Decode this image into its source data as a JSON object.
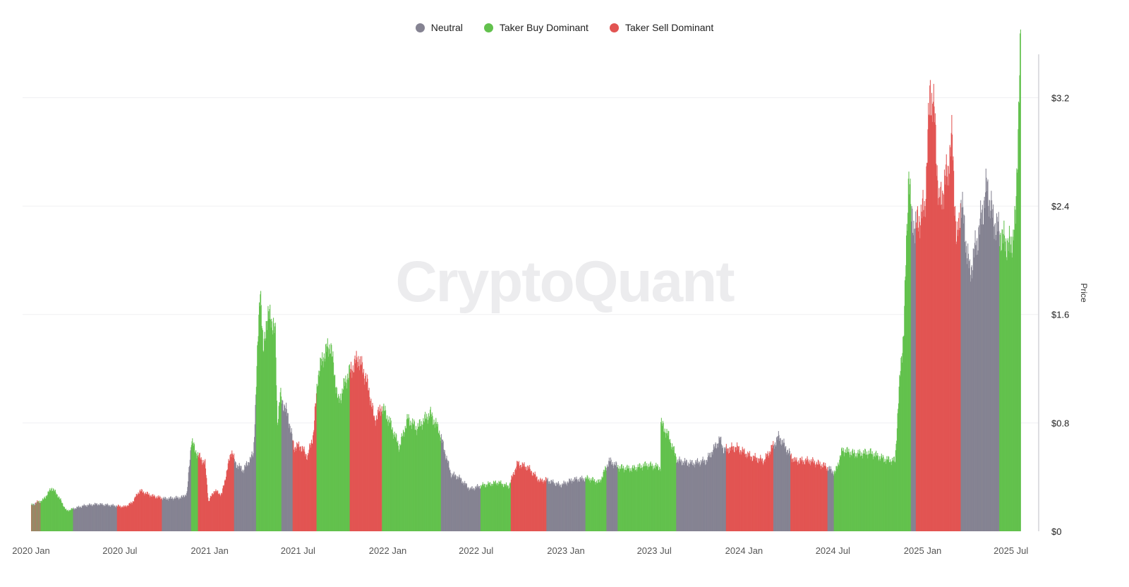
{
  "legend": [
    {
      "label": "Neutral",
      "color": "#858392"
    },
    {
      "label": "Taker Buy Dominant",
      "color": "#62c14d"
    },
    {
      "label": "Taker Sell Dominant",
      "color": "#e25452"
    }
  ],
  "watermark": "CryptoQuant",
  "chart_data": {
    "type": "bar",
    "title": "",
    "xlabel": "",
    "ylabel": "Price",
    "ylim": [
      0,
      3.52
    ],
    "xlim": [
      "2020-01-01",
      "2025-07-26"
    ],
    "grid": true,
    "legend_position": "top-center",
    "y_ticks": [
      {
        "value": 0,
        "label": "$0"
      },
      {
        "value": 0.8,
        "label": "$0.8"
      },
      {
        "value": 1.6,
        "label": "$1.6"
      },
      {
        "value": 2.4,
        "label": "$2.4"
      },
      {
        "value": 3.2,
        "label": "$3.2"
      }
    ],
    "x_ticks": [
      {
        "date": "2020-01-01",
        "label": "2020 Jan"
      },
      {
        "date": "2020-07-01",
        "label": "2020 Jul"
      },
      {
        "date": "2021-01-01",
        "label": "2021 Jan"
      },
      {
        "date": "2021-07-01",
        "label": "2021 Jul"
      },
      {
        "date": "2022-01-01",
        "label": "2022 Jan"
      },
      {
        "date": "2022-07-01",
        "label": "2022 Jul"
      },
      {
        "date": "2023-01-01",
        "label": "2023 Jan"
      },
      {
        "date": "2023-07-01",
        "label": "2023 Jul"
      },
      {
        "date": "2024-01-01",
        "label": "2024 Jan"
      },
      {
        "date": "2024-07-01",
        "label": "2024 Jul"
      },
      {
        "date": "2025-01-01",
        "label": "2025 Jan"
      },
      {
        "date": "2025-07-01",
        "label": "2025 Jul"
      }
    ],
    "series_labels": [
      "Neutral",
      "Taker Buy Dominant",
      "Taker Sell Dominant"
    ],
    "price_points": [
      [
        "2020-01-01",
        0.19
      ],
      [
        "2020-01-10",
        0.21
      ],
      [
        "2020-01-25",
        0.23
      ],
      [
        "2020-02-12",
        0.32
      ],
      [
        "2020-02-25",
        0.26
      ],
      [
        "2020-03-13",
        0.15
      ],
      [
        "2020-03-30",
        0.17
      ],
      [
        "2020-04-20",
        0.19
      ],
      [
        "2020-05-15",
        0.2
      ],
      [
        "2020-06-15",
        0.19
      ],
      [
        "2020-07-10",
        0.18
      ],
      [
        "2020-07-25",
        0.21
      ],
      [
        "2020-08-10",
        0.3
      ],
      [
        "2020-09-05",
        0.26
      ],
      [
        "2020-10-01",
        0.24
      ],
      [
        "2020-11-05",
        0.25
      ],
      [
        "2020-11-15",
        0.28
      ],
      [
        "2020-11-24",
        0.68
      ],
      [
        "2020-12-01",
        0.6
      ],
      [
        "2020-12-10",
        0.55
      ],
      [
        "2020-12-22",
        0.5
      ],
      [
        "2020-12-29",
        0.22
      ],
      [
        "2021-01-10",
        0.3
      ],
      [
        "2021-01-25",
        0.27
      ],
      [
        "2021-02-05",
        0.45
      ],
      [
        "2021-02-14",
        0.6
      ],
      [
        "2021-02-22",
        0.5
      ],
      [
        "2021-03-10",
        0.45
      ],
      [
        "2021-03-31",
        0.57
      ],
      [
        "2021-04-05",
        1.0
      ],
      [
        "2021-04-14",
        1.85
      ],
      [
        "2021-04-20",
        1.3
      ],
      [
        "2021-04-26",
        1.55
      ],
      [
        "2021-05-05",
        1.6
      ],
      [
        "2021-05-15",
        1.45
      ],
      [
        "2021-05-19",
        0.8
      ],
      [
        "2021-05-25",
        1.0
      ],
      [
        "2021-06-10",
        0.85
      ],
      [
        "2021-06-22",
        0.62
      ],
      [
        "2021-07-05",
        0.63
      ],
      [
        "2021-07-20",
        0.55
      ],
      [
        "2021-08-01",
        0.72
      ],
      [
        "2021-08-10",
        1.15
      ],
      [
        "2021-08-22",
        1.3
      ],
      [
        "2021-09-05",
        1.38
      ],
      [
        "2021-09-21",
        0.95
      ],
      [
        "2021-10-10",
        1.15
      ],
      [
        "2021-11-01",
        1.28
      ],
      [
        "2021-11-15",
        1.15
      ],
      [
        "2021-11-25",
        1.0
      ],
      [
        "2021-12-04",
        0.82
      ],
      [
        "2021-12-20",
        0.92
      ],
      [
        "2022-01-05",
        0.8
      ],
      [
        "2022-01-24",
        0.62
      ],
      [
        "2022-02-10",
        0.83
      ],
      [
        "2022-03-01",
        0.76
      ],
      [
        "2022-03-28",
        0.87
      ],
      [
        "2022-04-15",
        0.75
      ],
      [
        "2022-05-10",
        0.42
      ],
      [
        "2022-05-25",
        0.4
      ],
      [
        "2022-06-18",
        0.31
      ],
      [
        "2022-07-15",
        0.34
      ],
      [
        "2022-08-15",
        0.36
      ],
      [
        "2022-09-05",
        0.33
      ],
      [
        "2022-09-23",
        0.5
      ],
      [
        "2022-10-15",
        0.47
      ],
      [
        "2022-11-08",
        0.37
      ],
      [
        "2022-11-20",
        0.38
      ],
      [
        "2022-12-20",
        0.34
      ],
      [
        "2023-01-15",
        0.38
      ],
      [
        "2023-02-15",
        0.39
      ],
      [
        "2023-03-10",
        0.36
      ],
      [
        "2023-03-30",
        0.52
      ],
      [
        "2023-04-20",
        0.47
      ],
      [
        "2023-05-15",
        0.46
      ],
      [
        "2023-06-15",
        0.49
      ],
      [
        "2023-07-13",
        0.47
      ],
      [
        "2023-07-14",
        0.8
      ],
      [
        "2023-07-30",
        0.7
      ],
      [
        "2023-08-17",
        0.52
      ],
      [
        "2023-09-15",
        0.5
      ],
      [
        "2023-10-15",
        0.52
      ],
      [
        "2023-11-12",
        0.68
      ],
      [
        "2023-11-20",
        0.6
      ],
      [
        "2023-12-15",
        0.62
      ],
      [
        "2024-01-15",
        0.55
      ],
      [
        "2024-02-10",
        0.52
      ],
      [
        "2024-03-12",
        0.7
      ],
      [
        "2024-04-01",
        0.58
      ],
      [
        "2024-04-13",
        0.52
      ],
      [
        "2024-05-15",
        0.52
      ],
      [
        "2024-06-15",
        0.48
      ],
      [
        "2024-07-05",
        0.43
      ],
      [
        "2024-07-20",
        0.6
      ],
      [
        "2024-08-15",
        0.57
      ],
      [
        "2024-09-15",
        0.58
      ],
      [
        "2024-10-15",
        0.53
      ],
      [
        "2024-11-05",
        0.52
      ],
      [
        "2024-11-10",
        0.85
      ],
      [
        "2024-11-16",
        1.2
      ],
      [
        "2024-11-23",
        1.5
      ],
      [
        "2024-12-03",
        2.7
      ],
      [
        "2024-12-08",
        2.3
      ],
      [
        "2024-12-18",
        2.25
      ],
      [
        "2025-01-05",
        2.4
      ],
      [
        "2025-01-16",
        3.28
      ],
      [
        "2025-01-25",
        3.05
      ],
      [
        "2025-02-03",
        2.4
      ],
      [
        "2025-02-20",
        2.65
      ],
      [
        "2025-03-02",
        2.9
      ],
      [
        "2025-03-11",
        2.1
      ],
      [
        "2025-03-20",
        2.45
      ],
      [
        "2025-04-07",
        1.9
      ],
      [
        "2025-04-25",
        2.2
      ],
      [
        "2025-05-12",
        2.55
      ],
      [
        "2025-05-25",
        2.3
      ],
      [
        "2025-06-15",
        2.15
      ],
      [
        "2025-06-30",
        2.1
      ],
      [
        "2025-07-10",
        2.3
      ],
      [
        "2025-07-14",
        2.85
      ],
      [
        "2025-07-18",
        3.45
      ],
      [
        "2025-07-20",
        3.55
      ]
    ],
    "classification_segments": [
      [
        "2020-01-01",
        "2020-01-20",
        "mixed"
      ],
      [
        "2020-01-20",
        "2020-03-27",
        "Taker Buy Dominant"
      ],
      [
        "2020-03-27",
        "2020-06-25",
        "Neutral"
      ],
      [
        "2020-06-25",
        "2020-09-25",
        "Taker Sell Dominant"
      ],
      [
        "2020-09-25",
        "2020-11-24",
        "Neutral"
      ],
      [
        "2020-11-24",
        "2020-12-08",
        "Taker Buy Dominant"
      ],
      [
        "2020-12-08",
        "2021-02-07",
        "Taker Sell Dominant"
      ],
      [
        "2021-02-07",
        "2021-02-20",
        "Taker Sell Dominant"
      ],
      [
        "2021-02-20",
        "2021-04-06",
        "Neutral"
      ],
      [
        "2021-04-06",
        "2021-05-28",
        "Taker Buy Dominant"
      ],
      [
        "2021-05-28",
        "2021-06-20",
        "Neutral"
      ],
      [
        "2021-06-20",
        "2021-08-08",
        "Taker Sell Dominant"
      ],
      [
        "2021-08-08",
        "2021-10-15",
        "Taker Buy Dominant"
      ],
      [
        "2021-10-15",
        "2021-12-20",
        "Taker Sell Dominant"
      ],
      [
        "2021-12-20",
        "2022-04-20",
        "Taker Buy Dominant"
      ],
      [
        "2022-04-20",
        "2022-07-10",
        "Neutral"
      ],
      [
        "2022-07-10",
        "2022-09-10",
        "Taker Buy Dominant"
      ],
      [
        "2022-09-10",
        "2022-11-22",
        "Taker Sell Dominant"
      ],
      [
        "2022-11-22",
        "2023-02-10",
        "Neutral"
      ],
      [
        "2023-02-10",
        "2023-03-25",
        "Taker Buy Dominant"
      ],
      [
        "2023-03-25",
        "2023-04-17",
        "Neutral"
      ],
      [
        "2023-04-17",
        "2023-08-15",
        "Taker Buy Dominant"
      ],
      [
        "2023-08-15",
        "2023-11-25",
        "Neutral"
      ],
      [
        "2023-11-25",
        "2024-03-01",
        "Taker Sell Dominant"
      ],
      [
        "2024-03-01",
        "2024-04-05",
        "Neutral"
      ],
      [
        "2024-04-05",
        "2024-06-20",
        "Taker Sell Dominant"
      ],
      [
        "2024-06-20",
        "2024-07-03",
        "Neutral"
      ],
      [
        "2024-07-03",
        "2024-12-08",
        "Taker Buy Dominant"
      ],
      [
        "2024-12-08",
        "2024-12-18",
        "Neutral"
      ],
      [
        "2024-12-18",
        "2025-03-20",
        "Taker Sell Dominant"
      ],
      [
        "2025-03-20",
        "2025-06-07",
        "Neutral"
      ],
      [
        "2025-06-07",
        "2025-07-20",
        "Taker Buy Dominant"
      ]
    ]
  }
}
